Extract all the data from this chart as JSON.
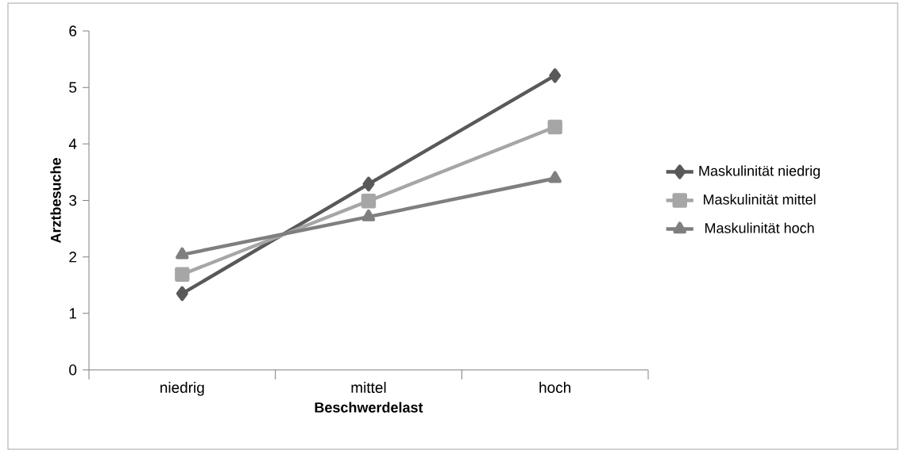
{
  "chart_data": {
    "type": "line",
    "xlabel": "Beschwerdelast",
    "ylabel": "Arztbesuche",
    "categories": [
      "niedrig",
      "mittel",
      "hoch"
    ],
    "series": [
      {
        "name": "Maskulinität niedrig",
        "color": "#595959",
        "marker": "diamond",
        "values": [
          1.35,
          3.29,
          5.21
        ]
      },
      {
        "name": "Maskulinität mittel",
        "color": "#a6a6a6",
        "marker": "square",
        "values": [
          1.69,
          2.99,
          4.3
        ]
      },
      {
        "name": "Maskulinität hoch",
        "color": "#7f7f7f",
        "marker": "triangle",
        "values": [
          2.04,
          2.71,
          3.39
        ]
      }
    ],
    "ylim": [
      0,
      6
    ],
    "yticks": [
      0,
      1,
      2,
      3,
      4,
      5,
      6
    ],
    "grid": false,
    "legend": "right",
    "line_style": "solid"
  }
}
